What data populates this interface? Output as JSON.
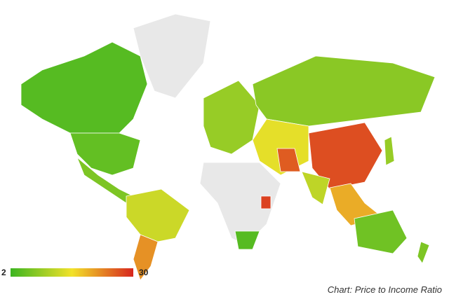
{
  "chart_data": {
    "type": "choropleth",
    "caption": "Chart: Price to Income Ratio",
    "scale": {
      "min": 2,
      "max": 30,
      "colors": [
        "#3cb521",
        "#f2e22a",
        "#d7261e"
      ],
      "missing_color": "#e8e8e8"
    },
    "values": [
      4,
      5,
      null,
      7,
      13,
      22,
      9,
      8,
      15,
      26,
      27,
      12,
      20,
      9,
      null,
      4,
      28,
      6,
      7
    ]
  }
}
